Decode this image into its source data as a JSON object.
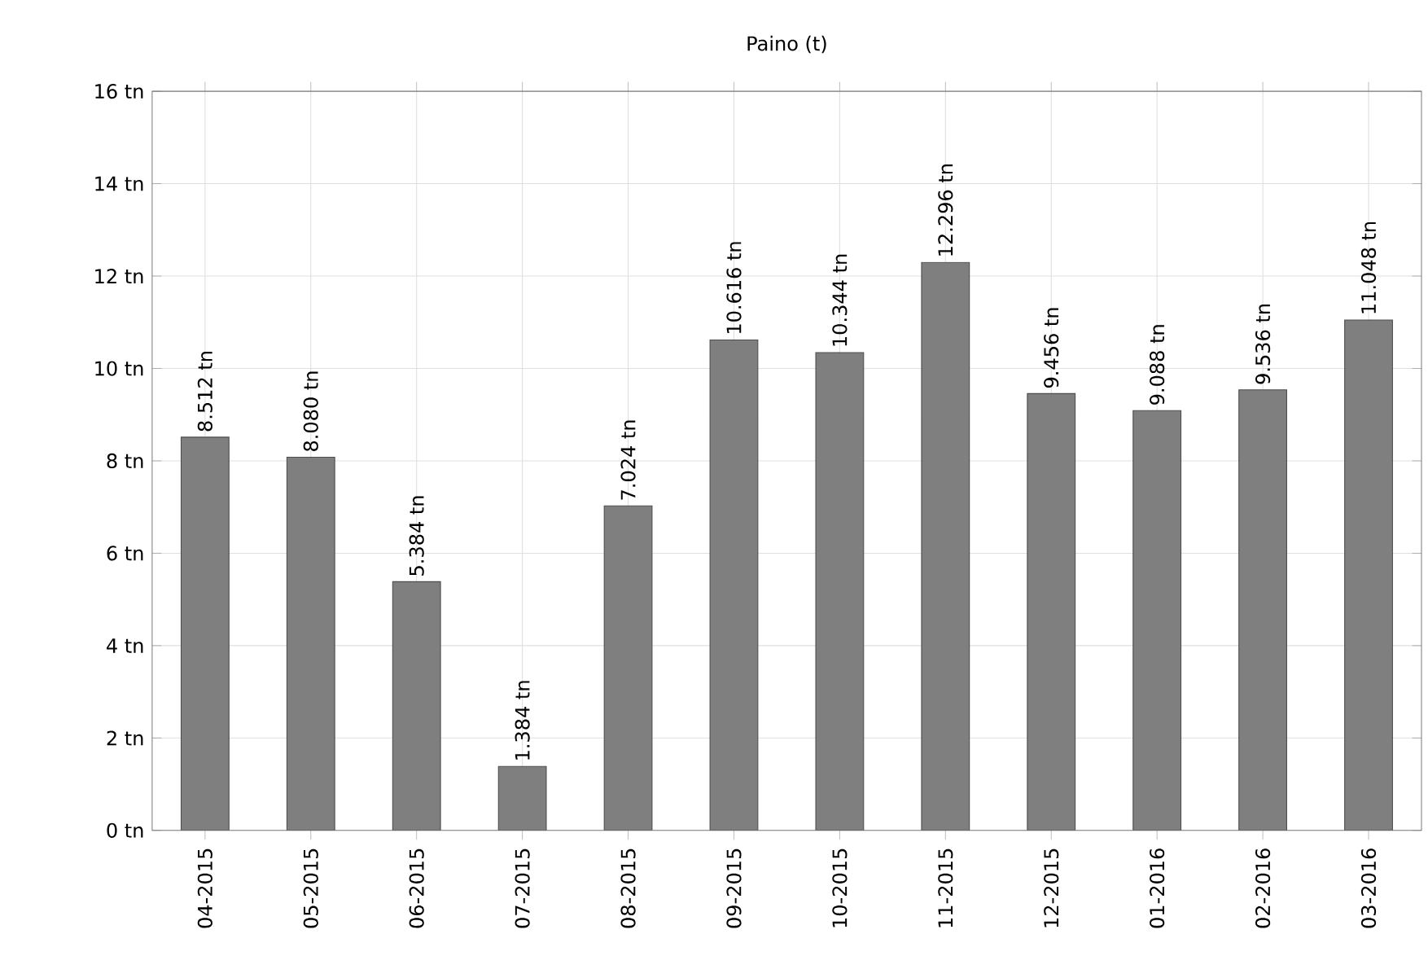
{
  "chart_data": {
    "type": "bar",
    "title": "Paino (t)",
    "categories": [
      "04-2015",
      "05-2015",
      "06-2015",
      "07-2015",
      "08-2015",
      "09-2015",
      "10-2015",
      "11-2015",
      "12-2015",
      "01-2016",
      "02-2016",
      "03-2016"
    ],
    "values": [
      8.512,
      8.08,
      5.384,
      1.384,
      7.024,
      10.616,
      10.344,
      12.296,
      9.456,
      9.088,
      9.536,
      11.048
    ],
    "value_labels": [
      "8.512 tn",
      "8.080 tn",
      "5.384 tn",
      "1.384 tn",
      "7.024 tn",
      "10.616 tn",
      "10.344 tn",
      "12.296 tn",
      "9.456 tn",
      "9.088 tn",
      "9.536 tn",
      "11.048 tn"
    ],
    "color": "#7f7f7f",
    "ylim": [
      0,
      16
    ],
    "yticks": [
      {
        "value": 0,
        "label": "0 tn"
      },
      {
        "value": 2,
        "label": "2 tn"
      },
      {
        "value": 4,
        "label": "4 tn"
      },
      {
        "value": 6,
        "label": "6 tn"
      },
      {
        "value": 8,
        "label": "8 tn"
      },
      {
        "value": 10,
        "label": "10 tn"
      },
      {
        "value": 12,
        "label": "12 tn"
      },
      {
        "value": 14,
        "label": "14 tn"
      },
      {
        "value": 16,
        "label": "16 tn"
      }
    ],
    "grid": true
  }
}
